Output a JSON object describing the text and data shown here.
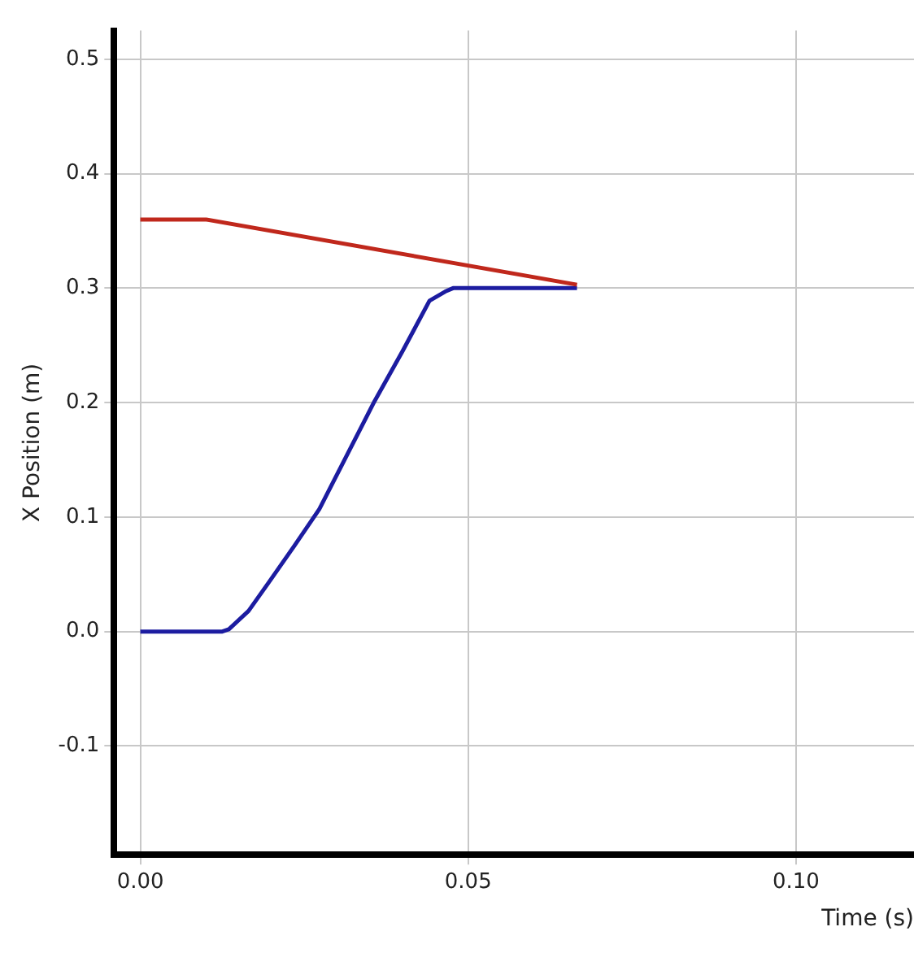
{
  "chart_data": {
    "type": "line",
    "xlabel": "Time (s)",
    "ylabel": "X Position (m)",
    "xlim": [
      -0.004,
      0.118
    ],
    "ylim": [
      -0.195,
      0.525
    ],
    "xticks": [
      {
        "value": 0,
        "label": "0.00"
      },
      {
        "value": 0.05,
        "label": "0.05"
      },
      {
        "value": 0.1,
        "label": "0.10"
      }
    ],
    "yticks": [
      {
        "value": -0.1,
        "label": "-0.1"
      },
      {
        "value": 0,
        "label": "0.0"
      },
      {
        "value": 0.1,
        "label": "0.1"
      },
      {
        "value": 0.2,
        "label": "0.2"
      },
      {
        "value": 0.3,
        "label": "0.3"
      },
      {
        "value": 0.4,
        "label": "0.4"
      },
      {
        "value": 0.5,
        "label": "0.5"
      }
    ],
    "grid": true,
    "legend": false,
    "marker": "none",
    "line_style": "solid",
    "series": [
      {
        "color": "#c0281c",
        "x": [
          0,
          0.01,
          0.0666
        ],
        "values": [
          0.36,
          0.36,
          0.303
        ]
      },
      {
        "color": "#1c1ca0",
        "x": [
          0,
          0.0125,
          0.0135,
          0.0165,
          0.0196,
          0.0235,
          0.0273,
          0.0315,
          0.0357,
          0.04,
          0.0441,
          0.0465,
          0.0477,
          0.0666
        ],
        "values": [
          0,
          0,
          0.002,
          0.018,
          0.043,
          0.075,
          0.107,
          0.154,
          0.201,
          0.245,
          0.289,
          0.297,
          0.3,
          0.3
        ]
      }
    ]
  }
}
